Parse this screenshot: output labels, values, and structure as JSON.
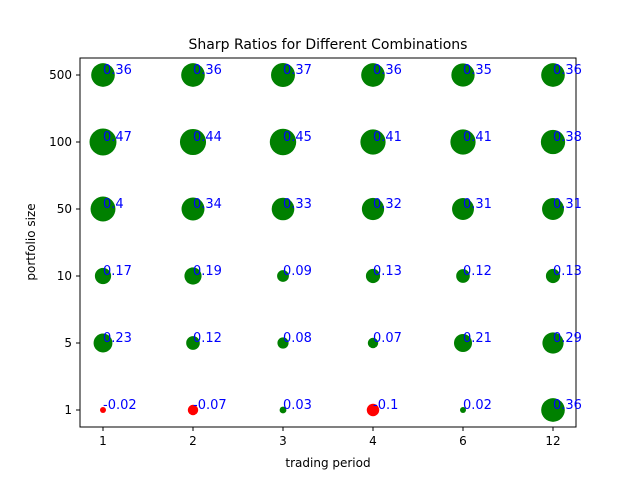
{
  "chart_data": {
    "type": "scatter",
    "title": "Sharp Ratios for Different Combinations",
    "xlabel": "trading period",
    "ylabel": "portfolio size",
    "x_categories": [
      "1",
      "2",
      "3",
      "4",
      "6",
      "12"
    ],
    "y_categories": [
      "1",
      "5",
      "10",
      "50",
      "100",
      "500"
    ],
    "grid": false,
    "colors": {
      "positive": "#008000",
      "negative": "#ff0000",
      "label": "#0000ff"
    },
    "values": {
      "500": [
        0.36,
        0.36,
        0.37,
        0.36,
        0.35,
        0.36
      ],
      "100": [
        0.47,
        0.44,
        0.45,
        0.41,
        0.41,
        0.38
      ],
      "50": [
        0.4,
        0.34,
        0.33,
        0.32,
        0.31,
        0.31
      ],
      "10": [
        0.17,
        0.19,
        0.09,
        0.13,
        0.12,
        0.13
      ],
      "5": [
        0.23,
        0.12,
        0.08,
        0.07,
        0.21,
        0.29
      ],
      "1": [
        -0.02,
        -0.07,
        0.03,
        -0.1,
        0.02,
        0.36
      ]
    },
    "labels": {
      "500": [
        "0.36",
        "0.36",
        "0.37",
        "0.36",
        "0.35",
        "0.36"
      ],
      "100": [
        "0.47",
        "0.44",
        "0.45",
        "0.41",
        "0.41",
        "0.38"
      ],
      "50": [
        "0.4",
        "0.34",
        "0.33",
        "0.32",
        "0.31",
        "0.31"
      ],
      "10": [
        "0.17",
        "0.19",
        "0.09",
        "0.13",
        "0.12",
        "0.13"
      ],
      "5": [
        "0.23",
        "0.12",
        "0.08",
        "0.07",
        "0.21",
        "0.29"
      ],
      "1": [
        "-0.02",
        "-0.07",
        "0.03",
        "-0.1",
        "0.02",
        "0.36"
      ]
    }
  }
}
